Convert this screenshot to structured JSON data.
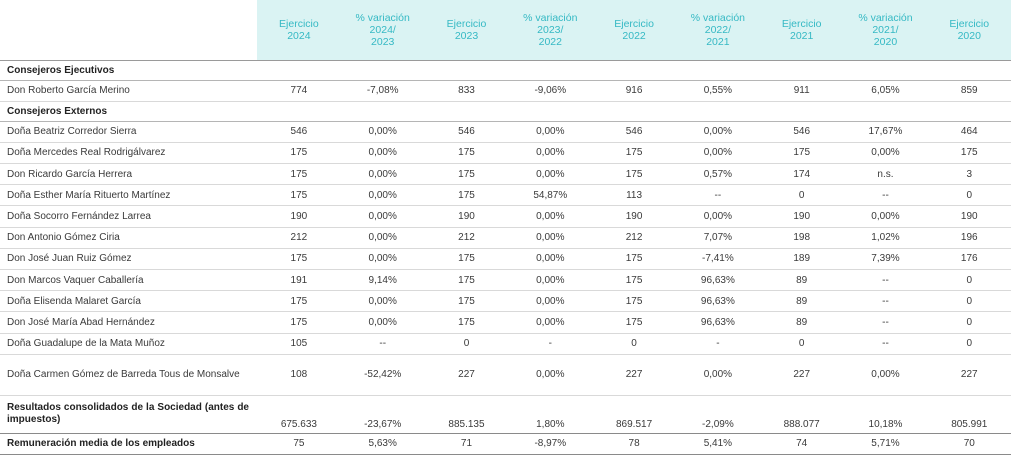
{
  "header": {
    "columns": [
      "Ejercicio 2024",
      "% variación 2024/ 2023",
      "Ejercicio 2023",
      "% variación 2023/ 2022",
      "Ejercicio 2022",
      "% variación 2022/ 2021",
      "Ejercicio 2021",
      "% variación 2021/ 2020",
      "Ejercicio 2020"
    ],
    "columns_lines": [
      [
        "Ejercicio",
        "2024"
      ],
      [
        "% variación",
        "2024/",
        "2023"
      ],
      [
        "Ejercicio",
        "2023"
      ],
      [
        "% variación",
        "2023/",
        "2022"
      ],
      [
        "Ejercicio",
        "2022"
      ],
      [
        "% variación",
        "2022/",
        "2021"
      ],
      [
        "Ejercicio",
        "2021"
      ],
      [
        "% variación",
        "2021/",
        "2020"
      ],
      [
        "Ejercicio",
        "2020"
      ]
    ]
  },
  "sections": [
    {
      "title": "Consejeros Ejecutivos",
      "rows": [
        {
          "name": "Don Roberto García Merino",
          "values": [
            "774",
            "-7,08%",
            "833",
            "-9,06%",
            "916",
            "0,55%",
            "911",
            "6,05%",
            "859"
          ]
        }
      ]
    },
    {
      "title": "Consejeros Externos",
      "rows": [
        {
          "name": "Doña Beatriz Corredor Sierra",
          "values": [
            "546",
            "0,00%",
            "546",
            "0,00%",
            "546",
            "0,00%",
            "546",
            "17,67%",
            "464"
          ]
        },
        {
          "name": "Doña Mercedes Real Rodrigálvarez",
          "values": [
            "175",
            "0,00%",
            "175",
            "0,00%",
            "175",
            "0,00%",
            "175",
            "0,00%",
            "175"
          ]
        },
        {
          "name": "Don Ricardo García Herrera",
          "values": [
            "175",
            "0,00%",
            "175",
            "0,00%",
            "175",
            "0,57%",
            "174",
            "n.s.",
            "3"
          ]
        },
        {
          "name": "Doña Esther María Rituerto Martínez",
          "values": [
            "175",
            "0,00%",
            "175",
            "54,87%",
            "113",
            "--",
            "0",
            "--",
            "0"
          ]
        },
        {
          "name": "Doña Socorro Fernández Larrea",
          "values": [
            "190",
            "0,00%",
            "190",
            "0,00%",
            "190",
            "0,00%",
            "190",
            "0,00%",
            "190"
          ]
        },
        {
          "name": "Don Antonio Gómez Ciria",
          "values": [
            "212",
            "0,00%",
            "212",
            "0,00%",
            "212",
            "7,07%",
            "198",
            "1,02%",
            "196"
          ]
        },
        {
          "name": "Don José Juan Ruiz Gómez",
          "values": [
            "175",
            "0,00%",
            "175",
            "0,00%",
            "175",
            "-7,41%",
            "189",
            "7,39%",
            "176"
          ]
        },
        {
          "name": "Don Marcos Vaquer Caballería",
          "values": [
            "191",
            "9,14%",
            "175",
            "0,00%",
            "175",
            "96,63%",
            "89",
            "--",
            "0"
          ]
        },
        {
          "name": "Doña Elisenda Malaret García",
          "values": [
            "175",
            "0,00%",
            "175",
            "0,00%",
            "175",
            "96,63%",
            "89",
            "--",
            "0"
          ]
        },
        {
          "name": "Don José María Abad Hernández",
          "values": [
            "175",
            "0,00%",
            "175",
            "0,00%",
            "175",
            "96,63%",
            "89",
            "--",
            "0"
          ]
        },
        {
          "name": "Doña Guadalupe de la Mata Muñoz",
          "values": [
            "105",
            "--",
            "0",
            "-",
            "0",
            "-",
            "0",
            "--",
            "0"
          ]
        },
        {
          "name": "Doña Carmen Gómez de Barreda Tous de Monsalve",
          "values": [
            "108",
            "-52,42%",
            "227",
            "0,00%",
            "227",
            "0,00%",
            "227",
            "0,00%",
            "227"
          ],
          "tall": true
        }
      ]
    }
  ],
  "results": {
    "name": "Resultados consolidados de la Sociedad (antes de impuestos)",
    "values": [
      "675.633",
      "-23,67%",
      "885.135",
      "1,80%",
      "869.517",
      "-2,09%",
      "888.077",
      "10,18%",
      "805.991"
    ]
  },
  "salary": {
    "name": "Remuneración media de los empleados",
    "values": [
      "75",
      "5,63%",
      "71",
      "-8,97%",
      "78",
      "5,41%",
      "74",
      "5,71%",
      "70"
    ]
  },
  "colors": {
    "header_bg": "#daf3f3",
    "header_text": "#35b9c4"
  }
}
